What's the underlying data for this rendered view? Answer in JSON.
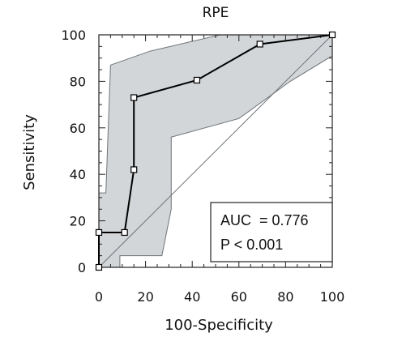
{
  "chart_data": {
    "type": "line",
    "title": "RPE",
    "xlabel": "100-Specificity",
    "ylabel": "Sensitivity",
    "xlim": [
      0,
      100
    ],
    "ylim": [
      0,
      100
    ],
    "x_ticks": [
      0,
      20,
      40,
      60,
      80,
      100
    ],
    "y_ticks": [
      0,
      20,
      40,
      60,
      80,
      100
    ],
    "grid": false,
    "legend_placement": "bottom-right",
    "series": [
      {
        "x": [
          0,
          0,
          11,
          15,
          15,
          42,
          69,
          100
        ],
        "y": [
          0,
          15,
          15,
          42,
          73,
          80.5,
          96,
          100
        ],
        "color": "#000000",
        "marker": "square"
      }
    ],
    "confidence_band": {
      "fill": "#d3d6d9",
      "stroke": "#6f7478",
      "upper": [
        {
          "x": 0,
          "y": 0
        },
        {
          "x": 0,
          "y": 32
        },
        {
          "x": 3,
          "y": 32
        },
        {
          "x": 5,
          "y": 87
        },
        {
          "x": 22,
          "y": 93
        },
        {
          "x": 52,
          "y": 100
        },
        {
          "x": 100,
          "y": 100
        }
      ],
      "lower": [
        {
          "x": 100,
          "y": 91
        },
        {
          "x": 82,
          "y": 80
        },
        {
          "x": 60,
          "y": 64
        },
        {
          "x": 31,
          "y": 56
        },
        {
          "x": 31,
          "y": 25
        },
        {
          "x": 27,
          "y": 5
        },
        {
          "x": 9,
          "y": 5
        },
        {
          "x": 9,
          "y": 0
        }
      ]
    },
    "reference_line": {
      "x": [
        0,
        100
      ],
      "y": [
        0,
        100
      ],
      "color": "#6f7478"
    },
    "annotation": {
      "auc_label": "AUC",
      "auc_value": "= 0.776",
      "p_label": "P < 0.001"
    }
  }
}
